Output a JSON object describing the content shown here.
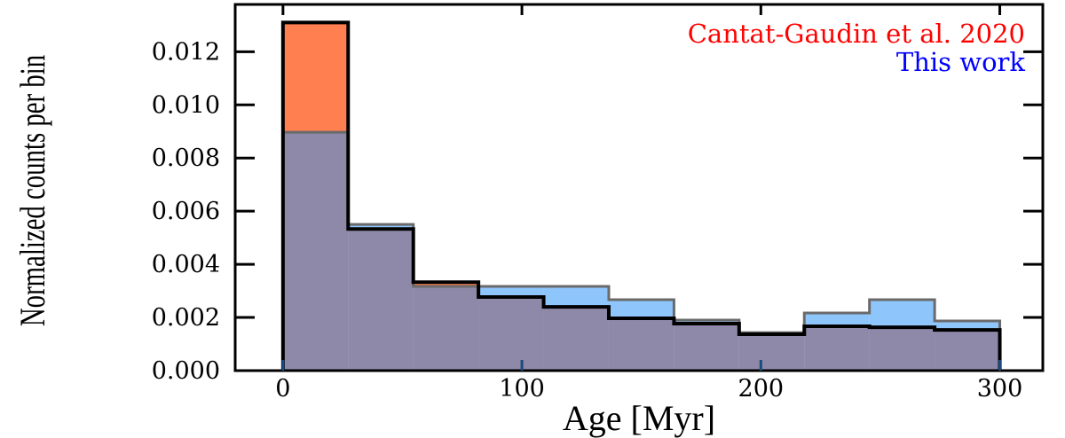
{
  "chart_data": {
    "type": "bar",
    "subtype": "histogram-step-filled",
    "xlabel": "Age [Myr]",
    "ylabel": "Normalized counts per bin",
    "xlim": [
      -20,
      318
    ],
    "ylim": [
      0,
      0.01378
    ],
    "xticks": [
      0,
      100,
      200,
      300
    ],
    "xtick_labels": [
      "0",
      "100",
      "200",
      "300"
    ],
    "yticks": [
      0,
      0.002,
      0.004,
      0.006,
      0.008,
      0.01,
      0.012
    ],
    "ytick_labels": [
      "0.000",
      "0.002",
      "0.004",
      "0.006",
      "0.008",
      "0.010",
      "0.012"
    ],
    "grid": false,
    "legend_position": "top-right",
    "bin_edges": [
      0,
      27.27,
      54.55,
      81.82,
      109.09,
      136.36,
      163.64,
      190.91,
      218.18,
      245.45,
      272.73,
      300
    ],
    "series": [
      {
        "name": "Cantat-Gaudin et al. 2020",
        "color": "#ff0000",
        "fill": "#ff7f50",
        "values": [
          0.0131,
          0.00533,
          0.00333,
          0.00277,
          0.0024,
          0.00197,
          0.00177,
          0.00137,
          0.00167,
          0.00163,
          0.00153
        ]
      },
      {
        "name": "This work",
        "color": "#0000ff",
        "fill": "#8ec5fb",
        "values": [
          0.00897,
          0.0055,
          0.00317,
          0.00317,
          0.00317,
          0.00267,
          0.0019,
          0.00143,
          0.00217,
          0.00267,
          0.00187
        ]
      }
    ],
    "overlap_fill": "#8e89a8"
  }
}
